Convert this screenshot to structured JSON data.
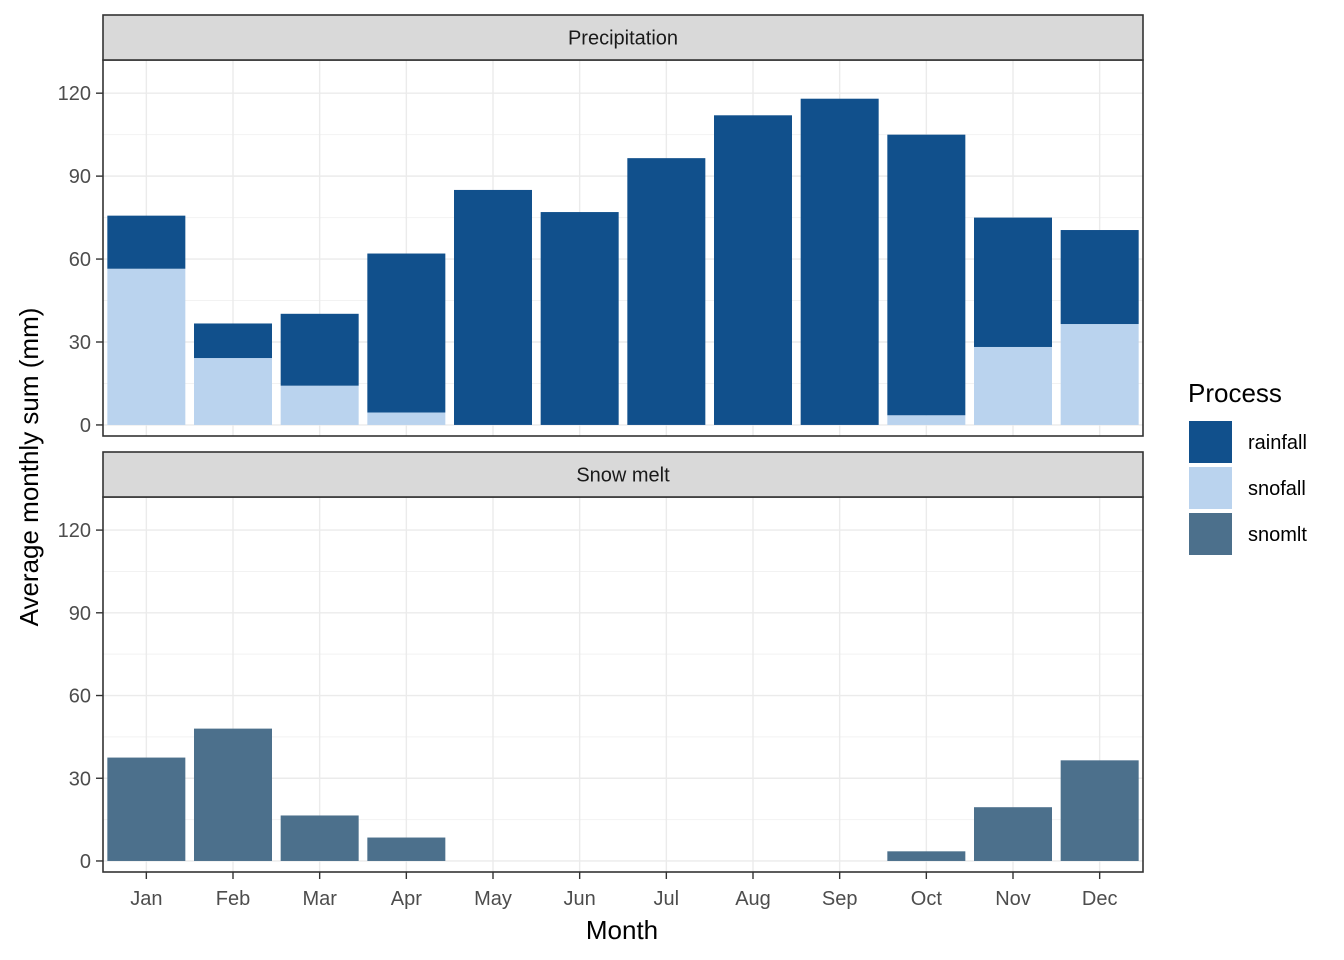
{
  "chart_data": {
    "type": "bar",
    "stacked": true,
    "xlabel": "Month",
    "ylabel": "Average monthly sum (mm)",
    "categories": [
      "Jan",
      "Feb",
      "Mar",
      "Apr",
      "May",
      "Jun",
      "Jul",
      "Aug",
      "Sep",
      "Oct",
      "Nov",
      "Dec"
    ],
    "ylim": [
      -4,
      132
    ],
    "yticks": [
      0,
      30,
      60,
      90,
      120
    ],
    "grid": true,
    "legend": {
      "title": "Process",
      "placement": "right",
      "entries": [
        {
          "key": "rainfall",
          "label": "rainfall",
          "color": "#11508C"
        },
        {
          "key": "snofall",
          "label": "snofall",
          "color": "#BAD3EE"
        },
        {
          "key": "snomlt",
          "label": "snomlt",
          "color": "#4C708C"
        }
      ]
    },
    "panels": [
      {
        "title": "Precipitation",
        "series": [
          {
            "key": "snofall",
            "name": "snofall",
            "color": "#BAD3EE",
            "values": [
              56.5,
              24.2,
              14.2,
              4.5,
              0,
              0,
              0,
              0,
              0,
              3.5,
              28.2,
              36.5
            ]
          },
          {
            "key": "rainfall",
            "name": "rainfall",
            "color": "#11508C",
            "values": [
              19.2,
              12.5,
              26.0,
              57.5,
              85.0,
              77.0,
              96.5,
              112.0,
              118.0,
              101.5,
              46.8,
              34.0
            ]
          }
        ]
      },
      {
        "title": "Snow melt",
        "series": [
          {
            "key": "snomlt",
            "name": "snomlt",
            "color": "#4C708C",
            "values": [
              37.5,
              48.0,
              16.5,
              8.5,
              0,
              0,
              0,
              0,
              0,
              3.5,
              19.5,
              36.5
            ]
          }
        ]
      }
    ]
  }
}
